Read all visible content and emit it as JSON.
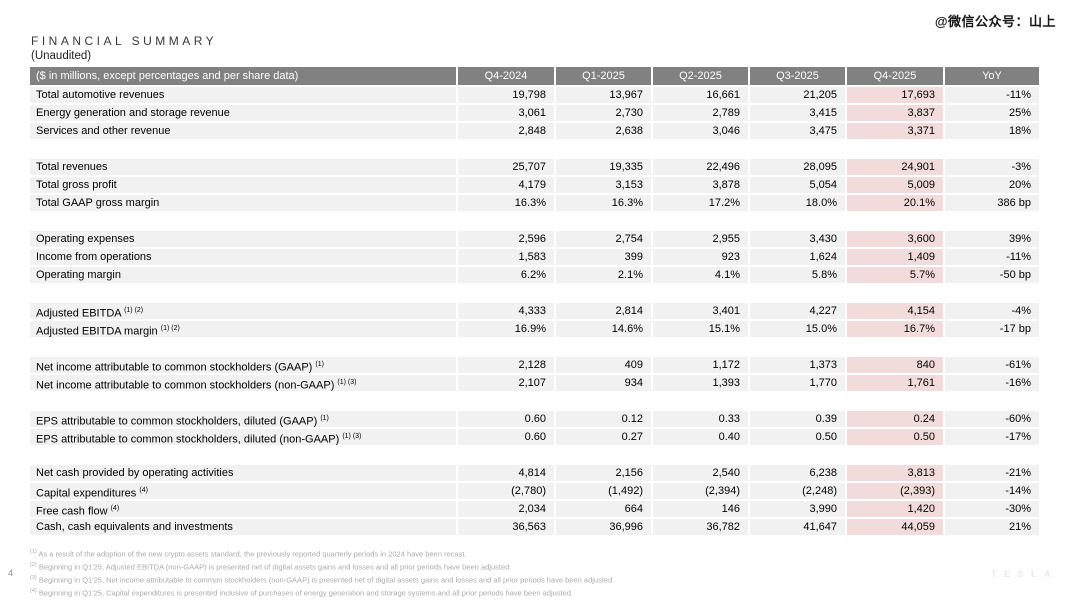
{
  "watermark": "@微信公众号：山上",
  "title": "FINANCIAL SUMMARY",
  "subtitle": "(Unaudited)",
  "page_number": "4",
  "logo": "TESLA",
  "colors": {
    "header_bg": "#818181",
    "row_bg": "#f1f1f1",
    "highlight_bg": "#f2dcdb",
    "footnote_text": "#ababab"
  },
  "table": {
    "corner_label": "($ in millions, except percentages and per share data)",
    "columns": [
      "Q4-2024",
      "Q1-2025",
      "Q2-2025",
      "Q3-2025",
      "Q4-2025",
      "YoY"
    ],
    "highlight_column": "Q4-2025",
    "sections": [
      {
        "rows": [
          {
            "label": "Total automotive revenues",
            "sup": "",
            "values": [
              "19,798",
              "13,967",
              "16,661",
              "21,205",
              "17,693"
            ],
            "yoy": "-11%"
          },
          {
            "label": "Energy generation and storage revenue",
            "sup": "",
            "values": [
              "3,061",
              "2,730",
              "2,789",
              "3,415",
              "3,837"
            ],
            "yoy": "25%"
          },
          {
            "label": "Services and other revenue",
            "sup": "",
            "values": [
              "2,848",
              "2,638",
              "3,046",
              "3,475",
              "3,371"
            ],
            "yoy": "18%"
          }
        ]
      },
      {
        "rows": [
          {
            "label": "Total revenues",
            "sup": "",
            "values": [
              "25,707",
              "19,335",
              "22,496",
              "28,095",
              "24,901"
            ],
            "yoy": "-3%"
          },
          {
            "label": "Total gross profit",
            "sup": "",
            "values": [
              "4,179",
              "3,153",
              "3,878",
              "5,054",
              "5,009"
            ],
            "yoy": "20%"
          },
          {
            "label": "Total GAAP gross margin",
            "sup": "",
            "values": [
              "16.3%",
              "16.3%",
              "17.2%",
              "18.0%",
              "20.1%"
            ],
            "yoy": "386 bp"
          }
        ]
      },
      {
        "rows": [
          {
            "label": "Operating expenses",
            "sup": "",
            "values": [
              "2,596",
              "2,754",
              "2,955",
              "3,430",
              "3,600"
            ],
            "yoy": "39%"
          },
          {
            "label": "Income from operations",
            "sup": "",
            "values": [
              "1,583",
              "399",
              "923",
              "1,624",
              "1,409"
            ],
            "yoy": "-11%"
          },
          {
            "label": "Operating margin",
            "sup": "",
            "values": [
              "6.2%",
              "2.1%",
              "4.1%",
              "5.8%",
              "5.7%"
            ],
            "yoy": "-50 bp"
          }
        ]
      },
      {
        "rows": [
          {
            "label": "Adjusted EBITDA",
            "sup": "(1) (2)",
            "values": [
              "4,333",
              "2,814",
              "3,401",
              "4,227",
              "4,154"
            ],
            "yoy": "-4%"
          },
          {
            "label": "Adjusted EBITDA margin",
            "sup": "(1) (2)",
            "values": [
              "16.9%",
              "14.6%",
              "15.1%",
              "15.0%",
              "16.7%"
            ],
            "yoy": "-17 bp"
          }
        ]
      },
      {
        "rows": [
          {
            "label": "Net income attributable to common stockholders (GAAP)",
            "sup": "(1)",
            "values": [
              "2,128",
              "409",
              "1,172",
              "1,373",
              "840"
            ],
            "yoy": "-61%"
          },
          {
            "label": "Net income attributable to common stockholders (non-GAAP)",
            "sup": "(1) (3)",
            "values": [
              "2,107",
              "934",
              "1,393",
              "1,770",
              "1,761"
            ],
            "yoy": "-16%"
          }
        ]
      },
      {
        "rows": [
          {
            "label": "EPS attributable to common stockholders, diluted (GAAP)",
            "sup": "(1)",
            "values": [
              "0.60",
              "0.12",
              "0.33",
              "0.39",
              "0.24"
            ],
            "yoy": "-60%"
          },
          {
            "label": "EPS attributable to common stockholders, diluted (non-GAAP)",
            "sup": "(1) (3)",
            "values": [
              "0.60",
              "0.27",
              "0.40",
              "0.50",
              "0.50"
            ],
            "yoy": "-17%"
          }
        ]
      },
      {
        "rows": [
          {
            "label": "Net cash provided by operating activities",
            "sup": "",
            "values": [
              "4,814",
              "2,156",
              "2,540",
              "6,238",
              "3,813"
            ],
            "yoy": "-21%"
          },
          {
            "label": "Capital expenditures",
            "sup": "(4)",
            "values": [
              "(2,780)",
              "(1,492)",
              "(2,394)",
              "(2,248)",
              "(2,393)"
            ],
            "yoy": "-14%"
          },
          {
            "label": "Free cash flow",
            "sup": "(4)",
            "values": [
              "2,034",
              "664",
              "146",
              "3,990",
              "1,420"
            ],
            "yoy": "-30%"
          },
          {
            "label": "Cash, cash equivalents and investments",
            "sup": "",
            "values": [
              "36,563",
              "36,996",
              "36,782",
              "41,647",
              "44,059"
            ],
            "yoy": "21%"
          }
        ]
      }
    ]
  },
  "footnotes": [
    {
      "marker": "(1)",
      "text": "As a result of the adoption of the new crypto assets standard, the previously reported quarterly periods in 2024 have been recast."
    },
    {
      "marker": "(2)",
      "text": "Beginning in Q1'25, Adjusted EBITDA (non-GAAP) is presented net of digital assets gains and losses and all prior periods have been adjusted."
    },
    {
      "marker": "(3)",
      "text": "Beginning in Q1'25, Net income attributable to common stockholders (non-GAAP) is presented net of digital assets gains and losses and all prior periods have been adjusted."
    },
    {
      "marker": "(4)",
      "text": "Beginning in Q1'25, Capital expenditures is presented inclusive of purchases of energy generation and storage systems and all prior periods have been adjusted."
    }
  ]
}
